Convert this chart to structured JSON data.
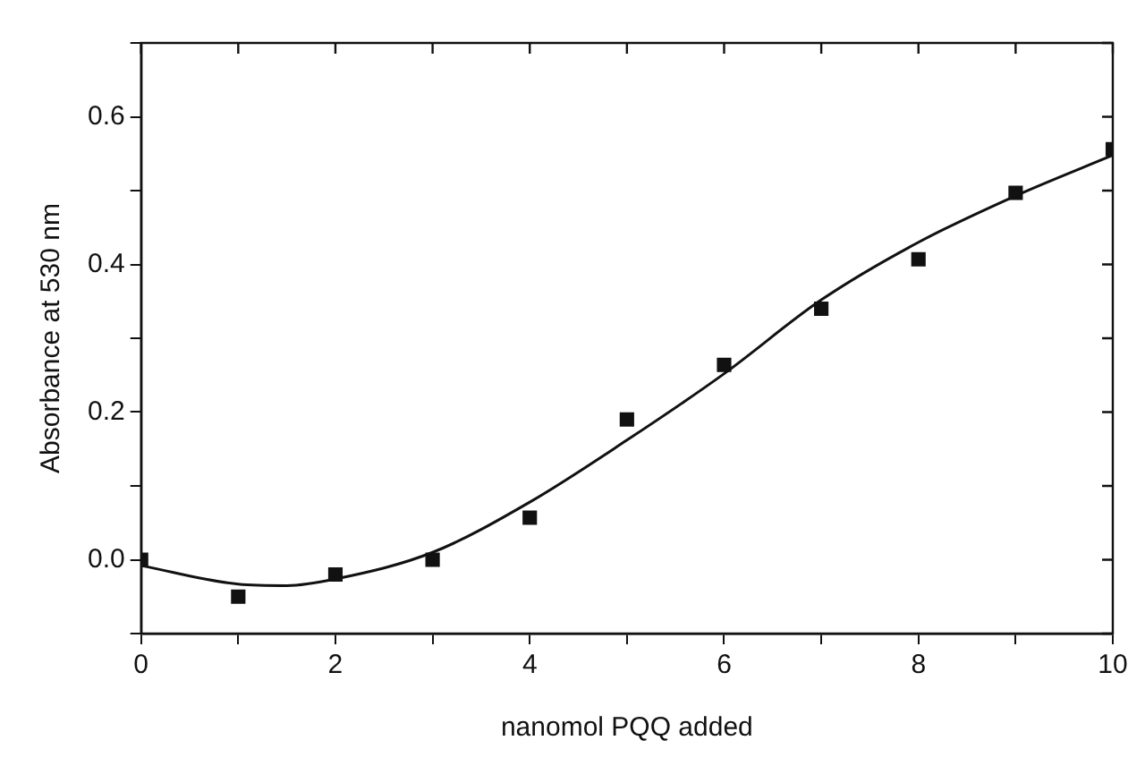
{
  "chart_data": {
    "type": "scatter",
    "xlabel": "nanomol PQQ added",
    "ylabel": "Absorbance at 530 nm",
    "xlim": [
      0,
      10
    ],
    "ylim": [
      -0.1,
      0.7
    ],
    "xticks": [
      0,
      {
        "value": 1,
        "label": null
      },
      2,
      {
        "value": 3,
        "label": null
      },
      4,
      {
        "value": 5,
        "label": null
      },
      6,
      {
        "value": 7,
        "label": null
      },
      8,
      {
        "value": 9,
        "label": null
      },
      10
    ],
    "yticks": [
      {
        "value": -0.1,
        "label": null
      },
      "0.0",
      {
        "value": 0.1,
        "label": null
      },
      0.2,
      {
        "value": 0.3,
        "label": null
      },
      0.4,
      {
        "value": 0.5,
        "label": null
      },
      0.6,
      {
        "value": 0.7,
        "label": null
      }
    ],
    "grid": false,
    "legend": false,
    "series": [
      {
        "marker": "square",
        "color": "#111111",
        "x": [
          0,
          1,
          2,
          3,
          4,
          5,
          6,
          7,
          8,
          9,
          10
        ],
        "values": [
          0.0,
          -0.05,
          -0.02,
          0.0,
          0.057,
          0.19,
          0.264,
          0.34,
          0.407,
          0.497,
          0.556
        ]
      },
      {
        "type": "line",
        "marker": "none",
        "line_style": "solid",
        "color": "#111111",
        "x": [
          0,
          1,
          1.5,
          2,
          3,
          4,
          5,
          6,
          7,
          8,
          9,
          10
        ],
        "values": [
          -0.008,
          -0.033,
          -0.035,
          -0.026,
          0.01,
          0.078,
          0.162,
          0.252,
          0.352,
          0.43,
          0.493,
          0.548
        ]
      }
    ]
  }
}
